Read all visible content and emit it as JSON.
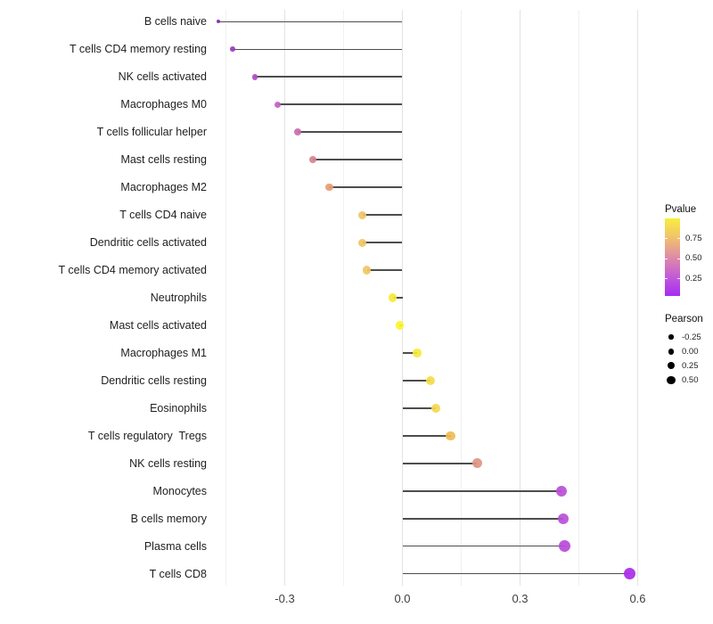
{
  "chart_data": {
    "type": "lollipop",
    "title": "",
    "xlabel": "",
    "ylabel": "",
    "xlim": [
      -0.495,
      0.625
    ],
    "grid": true,
    "x_ticks": [
      {
        "value": -0.3,
        "label": "-0.3"
      },
      {
        "value": 0.0,
        "label": "0.0"
      },
      {
        "value": 0.3,
        "label": "0.3"
      },
      {
        "value": 0.6,
        "label": "0.6"
      }
    ],
    "x_minor_gridlines": [
      -0.45,
      -0.15,
      0.15,
      0.45
    ],
    "rows": [
      {
        "label": "B cells naive",
        "pearson": -0.469,
        "color": "#8A25B2",
        "size": 4.2
      },
      {
        "label": "T cells CD4 memory resting",
        "pearson": -0.433,
        "color": "#9B39BE",
        "size": 5.6
      },
      {
        "label": "NK cells activated",
        "pearson": -0.376,
        "color": "#AC4DC5",
        "size": 6.6
      },
      {
        "label": "Macrophages M0",
        "pearson": -0.318,
        "color": "#C263C3",
        "size": 7.4
      },
      {
        "label": "T cells follicular helper",
        "pearson": -0.268,
        "color": "#CC6BAD",
        "size": 8.0
      },
      {
        "label": "Mast cells resting",
        "pearson": -0.228,
        "color": "#D68290",
        "size": 8.2
      },
      {
        "label": "Macrophages M2",
        "pearson": -0.187,
        "color": "#E89B74",
        "size": 8.6
      },
      {
        "label": "T cells CD4 naive",
        "pearson": -0.102,
        "color": "#EFC464",
        "size": 9.0
      },
      {
        "label": "Dendritic cells activated",
        "pearson": -0.102,
        "color": "#EFC464",
        "size": 9.0
      },
      {
        "label": "T cells CD4 memory activated",
        "pearson": -0.09,
        "color": "#F0C75F",
        "size": 9.1
      },
      {
        "label": "Neutrophils",
        "pearson": -0.025,
        "color": "#F6E93A",
        "size": 9.3
      },
      {
        "label": "Mast cells activated",
        "pearson": -0.007,
        "color": "#FBF52B",
        "size": 9.5
      },
      {
        "label": "Macrophages M1",
        "pearson": 0.038,
        "color": "#F6E93A",
        "size": 9.7
      },
      {
        "label": "Dendritic cells resting",
        "pearson": 0.072,
        "color": "#F4DC49",
        "size": 10.0
      },
      {
        "label": "Eosinophils",
        "pearson": 0.085,
        "color": "#F3D84E",
        "size": 10.2
      },
      {
        "label": "T cells regulatory  Tregs",
        "pearson": 0.123,
        "color": "#EDBC55",
        "size": 10.5
      },
      {
        "label": "NK cells resting",
        "pearson": 0.19,
        "color": "#DE9483",
        "size": 11.0
      },
      {
        "label": "Monocytes",
        "pearson": 0.405,
        "color": "#B94FD6",
        "size": 12.3
      },
      {
        "label": "B cells memory",
        "pearson": 0.41,
        "color": "#B94FD6",
        "size": 12.5
      },
      {
        "label": "Plasma cells",
        "pearson": 0.414,
        "color": "#B74AD9",
        "size": 12.7
      },
      {
        "label": "T cells CD8",
        "pearson": 0.58,
        "color": "#A92BE8",
        "size": 13.4
      }
    ],
    "legend_pvalue": {
      "title": "Pvalue",
      "ticks": [
        {
          "value": 0.75,
          "label": "0.75"
        },
        {
          "value": 0.5,
          "label": "0.50"
        },
        {
          "value": 0.25,
          "label": "0.25"
        }
      ],
      "range": [
        0.03,
        1.0
      ],
      "gradient": [
        "#A62BF2",
        "#C35BD8",
        "#DF8BA6",
        "#F0C16E",
        "#F8EE3D"
      ]
    },
    "legend_pearson": {
      "title": "Pearson",
      "items": [
        {
          "label": "-0.25",
          "size": 5.3
        },
        {
          "label": "0.00",
          "size": 6.7
        },
        {
          "label": "0.25",
          "size": 8.0
        },
        {
          "label": "0.50",
          "size": 9.3
        }
      ]
    },
    "colors": {
      "stem": "#4d4d4d",
      "major_grid": "#e3e3e3",
      "minor_grid": "#f1f1f1",
      "axis_text": "#404040",
      "label_text": "#1f1f1f",
      "background": "#ffffff"
    }
  }
}
